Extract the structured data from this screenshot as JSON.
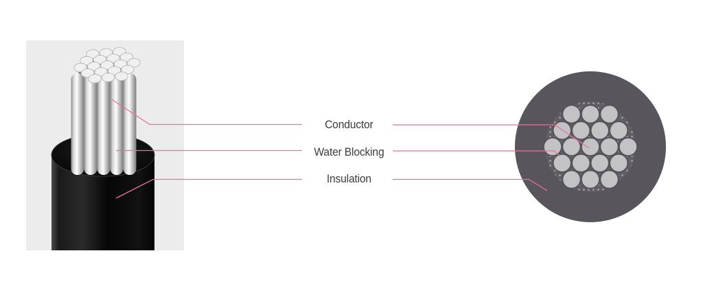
{
  "labels": [
    {
      "id": "conductor",
      "text": "Conductor"
    },
    {
      "id": "water-blocking",
      "text": "Water Blocking"
    },
    {
      "id": "insulation",
      "text": "Insulation"
    }
  ],
  "cross_section": {
    "strand_count": 19,
    "strand_rows": [
      3,
      4,
      5,
      4,
      3
    ]
  },
  "colors": {
    "leader_line": "#ea7198",
    "label_text": "#3d3d3d",
    "insulation_fill": "#58555c",
    "strand_fill": "#c3c2c5",
    "strand_stroke": "#55525a",
    "filler_bg": "#615e65",
    "filler_dot": "#a8a7aa",
    "photo_bg": "#ececec"
  }
}
